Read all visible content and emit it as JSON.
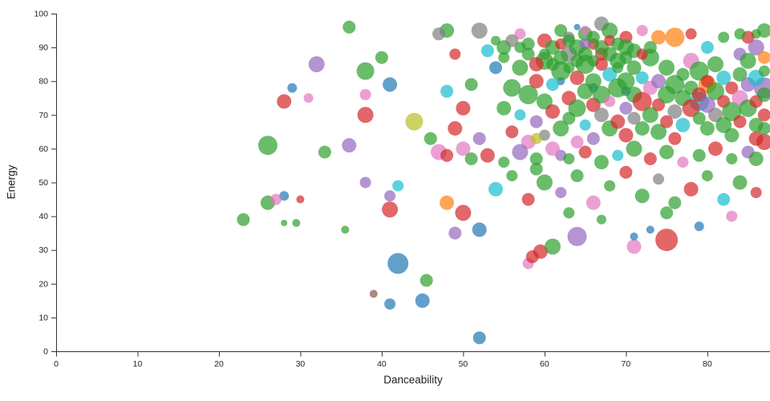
{
  "chart_data": {
    "type": "scatter",
    "title": "",
    "xlabel": "Danceability",
    "ylabel": "Energy",
    "xlim": [
      0,
      87.7
    ],
    "ylim": [
      0,
      100
    ],
    "x_ticks": [
      0,
      10,
      20,
      30,
      40,
      50,
      60,
      70,
      80
    ],
    "y_ticks": [
      0,
      10,
      20,
      30,
      40,
      50,
      60,
      70,
      80,
      90,
      100
    ],
    "legend": "none",
    "grid": false,
    "point_opacity": 0.7,
    "palette": [
      "#1f77b4",
      "#ff7f0e",
      "#2ca02c",
      "#d62728",
      "#9467bd",
      "#8c564b",
      "#e377c2",
      "#7f7f7f",
      "#bcbd22",
      "#17becf"
    ],
    "points": [
      [
        52,
        4,
        8,
        0
      ],
      [
        45,
        15,
        9,
        0
      ],
      [
        41,
        14,
        7,
        0
      ],
      [
        42,
        26,
        13,
        0
      ],
      [
        39,
        17,
        5,
        5
      ],
      [
        45.5,
        21,
        8,
        2
      ],
      [
        58,
        26,
        7,
        6
      ],
      [
        58.5,
        28,
        8,
        3
      ],
      [
        59.5,
        29.5,
        9,
        3
      ],
      [
        61,
        31,
        10,
        2
      ],
      [
        64,
        34,
        12,
        4
      ],
      [
        71,
        31,
        9,
        6
      ],
      [
        75,
        33,
        14,
        3
      ],
      [
        71,
        34,
        5,
        0
      ],
      [
        73,
        36,
        5,
        0
      ],
      [
        49,
        35,
        8,
        4
      ],
      [
        52,
        36,
        9,
        0
      ],
      [
        35.5,
        36,
        5,
        2
      ],
      [
        28,
        38,
        4,
        2
      ],
      [
        29.5,
        38,
        5,
        2
      ],
      [
        23,
        39,
        8,
        2
      ],
      [
        26,
        44,
        9,
        2
      ],
      [
        26,
        61,
        12,
        2
      ],
      [
        28,
        46,
        6,
        0
      ],
      [
        27,
        45,
        7,
        6
      ],
      [
        30,
        45,
        5,
        3
      ],
      [
        28,
        74,
        9,
        3
      ],
      [
        31,
        75,
        6,
        6
      ],
      [
        29,
        78,
        6,
        0
      ],
      [
        32,
        85,
        10,
        4
      ],
      [
        36,
        96,
        8,
        2
      ],
      [
        38,
        83,
        11,
        2
      ],
      [
        41,
        79,
        9,
        0
      ],
      [
        40,
        87,
        8,
        2
      ],
      [
        44,
        68,
        11,
        8
      ],
      [
        38,
        70,
        10,
        3
      ],
      [
        38,
        76,
        7,
        6
      ],
      [
        36,
        61,
        9,
        4
      ],
      [
        33,
        59,
        8,
        2
      ],
      [
        42,
        49,
        7,
        9
      ],
      [
        38,
        50,
        7,
        4
      ],
      [
        41,
        46,
        7,
        4
      ],
      [
        41,
        42,
        10,
        3
      ],
      [
        48,
        44,
        9,
        1
      ],
      [
        50,
        41,
        10,
        3
      ],
      [
        47,
        59,
        10,
        6
      ],
      [
        48,
        58,
        8,
        3
      ],
      [
        50,
        60,
        9,
        6
      ],
      [
        46,
        63,
        8,
        2
      ],
      [
        49,
        66,
        9,
        3
      ],
      [
        52,
        63,
        8,
        4
      ],
      [
        50,
        72,
        9,
        3
      ],
      [
        48,
        77,
        8,
        9
      ],
      [
        51,
        79,
        8,
        2
      ],
      [
        49,
        88,
        7,
        3
      ],
      [
        48,
        95,
        9,
        2
      ],
      [
        47,
        94,
        8,
        7
      ],
      [
        52,
        95,
        10,
        7
      ],
      [
        53,
        89,
        8,
        9
      ],
      [
        55,
        90,
        9,
        2
      ],
      [
        57,
        94,
        7,
        6
      ],
      [
        58,
        91,
        8,
        2
      ],
      [
        60,
        92,
        9,
        3
      ],
      [
        62,
        95,
        8,
        2
      ],
      [
        63,
        93,
        7,
        7
      ],
      [
        65,
        94,
        9,
        2
      ],
      [
        67,
        97,
        9,
        7
      ],
      [
        68,
        95,
        10,
        2
      ],
      [
        70,
        93,
        8,
        3
      ],
      [
        72,
        95,
        7,
        6
      ],
      [
        74,
        93,
        9,
        1
      ],
      [
        76,
        93,
        12,
        1
      ],
      [
        78,
        94,
        7,
        3
      ],
      [
        80,
        90,
        8,
        9
      ],
      [
        82,
        93,
        7,
        2
      ],
      [
        84,
        88,
        8,
        4
      ],
      [
        86,
        94,
        6,
        2
      ],
      [
        87,
        95,
        9,
        2
      ],
      [
        85,
        93,
        8,
        3
      ],
      [
        86,
        90,
        10,
        4
      ],
      [
        84,
        94,
        7,
        2
      ],
      [
        64,
        96,
        4,
        0
      ],
      [
        65,
        95,
        6,
        6
      ],
      [
        66,
        91,
        7,
        3
      ],
      [
        54,
        84,
        8,
        0
      ],
      [
        66,
        78,
        6,
        0
      ],
      [
        62,
        80,
        5,
        0
      ],
      [
        70,
        77,
        6,
        0
      ],
      [
        79,
        74,
        12,
        9
      ],
      [
        87,
        78,
        13,
        4
      ],
      [
        80,
        79,
        11,
        1
      ],
      [
        87,
        62,
        10,
        3
      ],
      [
        86,
        63,
        9,
        3
      ],
      [
        87,
        66,
        8,
        2
      ],
      [
        87,
        87,
        8,
        1
      ],
      [
        55,
        72,
        9,
        2
      ],
      [
        56,
        78,
        11,
        2
      ],
      [
        56,
        65,
        8,
        3
      ],
      [
        57,
        70,
        7,
        9
      ],
      [
        57,
        84,
        10,
        2
      ],
      [
        58,
        62,
        9,
        6
      ],
      [
        58,
        76,
        12,
        2
      ],
      [
        59,
        68,
        8,
        4
      ],
      [
        59,
        80,
        9,
        3
      ],
      [
        60,
        74,
        10,
        2
      ],
      [
        60,
        64,
        7,
        7
      ],
      [
        60,
        86,
        11,
        2
      ],
      [
        61,
        71,
        9,
        3
      ],
      [
        61,
        79,
        8,
        9
      ],
      [
        62,
        66,
        10,
        2
      ],
      [
        62,
        83,
        12,
        2
      ],
      [
        62,
        58,
        7,
        4
      ],
      [
        63,
        75,
        9,
        3
      ],
      [
        63,
        69,
        8,
        2
      ],
      [
        63,
        88,
        10,
        7
      ],
      [
        64,
        72,
        11,
        2
      ],
      [
        64,
        62,
        8,
        6
      ],
      [
        64,
        81,
        9,
        3
      ],
      [
        65,
        77,
        10,
        2
      ],
      [
        65,
        67,
        7,
        9
      ],
      [
        65,
        85,
        12,
        2
      ],
      [
        66,
        73,
        9,
        3
      ],
      [
        66,
        63,
        8,
        4
      ],
      [
        66,
        80,
        10,
        2
      ],
      [
        67,
        70,
        9,
        7
      ],
      [
        67,
        76,
        11,
        2
      ],
      [
        67,
        88,
        8,
        3
      ],
      [
        68,
        66,
        10,
        2
      ],
      [
        68,
        82,
        9,
        9
      ],
      [
        68,
        74,
        7,
        6
      ],
      [
        69,
        78,
        12,
        2
      ],
      [
        69,
        68,
        9,
        3
      ],
      [
        69,
        86,
        10,
        2
      ],
      [
        70,
        72,
        8,
        4
      ],
      [
        70,
        80,
        11,
        2
      ],
      [
        70,
        64,
        9,
        3
      ],
      [
        71,
        76,
        10,
        2
      ],
      [
        71,
        69,
        8,
        7
      ],
      [
        71,
        84,
        9,
        2
      ],
      [
        72,
        74,
        12,
        3
      ],
      [
        72,
        66,
        9,
        2
      ],
      [
        72,
        81,
        8,
        9
      ],
      [
        73,
        70,
        10,
        2
      ],
      [
        73,
        78,
        9,
        6
      ],
      [
        73,
        87,
        11,
        2
      ],
      [
        74,
        73,
        8,
        3
      ],
      [
        74,
        65,
        10,
        2
      ],
      [
        74,
        80,
        9,
        4
      ],
      [
        75,
        76,
        11,
        2
      ],
      [
        75,
        68,
        8,
        3
      ],
      [
        75,
        84,
        10,
        2
      ],
      [
        76,
        71,
        9,
        7
      ],
      [
        76,
        79,
        12,
        2
      ],
      [
        76,
        63,
        8,
        3
      ],
      [
        77,
        75,
        10,
        2
      ],
      [
        77,
        67,
        9,
        9
      ],
      [
        77,
        82,
        8,
        2
      ],
      [
        78,
        72,
        11,
        3
      ],
      [
        78,
        78,
        9,
        2
      ],
      [
        78,
        86,
        10,
        6
      ],
      [
        79,
        69,
        8,
        2
      ],
      [
        79,
        76,
        9,
        3
      ],
      [
        79,
        83,
        12,
        2
      ],
      [
        80,
        73,
        10,
        4
      ],
      [
        80,
        66,
        9,
        2
      ],
      [
        80,
        80,
        8,
        3
      ],
      [
        81,
        77,
        11,
        2
      ],
      [
        81,
        70,
        9,
        7
      ],
      [
        81,
        85,
        10,
        2
      ],
      [
        82,
        74,
        8,
        3
      ],
      [
        82,
        67,
        10,
        2
      ],
      [
        82,
        81,
        9,
        9
      ],
      [
        83,
        71,
        12,
        2
      ],
      [
        83,
        78,
        8,
        3
      ],
      [
        83,
        64,
        9,
        2
      ],
      [
        84,
        75,
        10,
        6
      ],
      [
        84,
        82,
        9,
        2
      ],
      [
        84,
        68,
        8,
        3
      ],
      [
        85,
        72,
        11,
        2
      ],
      [
        85,
        79,
        9,
        4
      ],
      [
        85,
        86,
        10,
        2
      ],
      [
        86,
        74,
        8,
        3
      ],
      [
        86,
        67,
        9,
        2
      ],
      [
        86,
        81,
        10,
        9
      ],
      [
        87,
        76,
        9,
        2
      ],
      [
        87,
        70,
        8,
        3
      ],
      [
        87,
        83,
        7,
        2
      ],
      [
        61,
        90,
        9,
        2
      ],
      [
        62,
        91,
        7,
        3
      ],
      [
        63,
        92,
        8,
        2
      ],
      [
        64,
        90,
        10,
        2
      ],
      [
        65,
        91,
        7,
        4
      ],
      [
        66,
        93,
        8,
        2
      ],
      [
        67,
        90,
        9,
        2
      ],
      [
        68,
        92,
        7,
        3
      ],
      [
        69,
        91,
        8,
        2
      ],
      [
        70,
        90,
        10,
        2
      ],
      [
        64,
        86,
        8,
        2
      ],
      [
        65,
        88,
        9,
        2
      ],
      [
        66,
        86,
        7,
        2
      ],
      [
        67,
        85,
        8,
        3
      ],
      [
        68,
        88,
        9,
        2
      ],
      [
        69,
        84,
        7,
        2
      ],
      [
        70,
        87,
        8,
        2
      ],
      [
        71,
        89,
        9,
        2
      ],
      [
        72,
        88,
        7,
        3
      ],
      [
        73,
        90,
        8,
        2
      ],
      [
        63,
        84,
        7,
        2
      ],
      [
        62,
        87,
        9,
        2
      ],
      [
        61,
        85,
        8,
        2
      ],
      [
        60,
        88,
        7,
        2
      ],
      [
        59,
        85,
        9,
        3
      ],
      [
        58,
        88,
        8,
        2
      ],
      [
        57,
        90,
        7,
        2
      ],
      [
        56,
        92,
        8,
        7
      ],
      [
        55,
        87,
        7,
        2
      ],
      [
        54,
        92,
        6,
        2
      ],
      [
        51,
        57,
        8,
        2
      ],
      [
        53,
        58,
        9,
        3
      ],
      [
        55,
        56,
        7,
        2
      ],
      [
        57,
        59,
        10,
        4
      ],
      [
        59,
        57,
        8,
        2
      ],
      [
        61,
        60,
        9,
        6
      ],
      [
        63,
        57,
        7,
        2
      ],
      [
        65,
        59,
        8,
        3
      ],
      [
        67,
        56,
        9,
        2
      ],
      [
        69,
        58,
        7,
        9
      ],
      [
        71,
        60,
        10,
        2
      ],
      [
        73,
        57,
        8,
        3
      ],
      [
        75,
        59,
        9,
        2
      ],
      [
        77,
        56,
        7,
        6
      ],
      [
        79,
        58,
        8,
        2
      ],
      [
        81,
        60,
        9,
        3
      ],
      [
        83,
        57,
        7,
        2
      ],
      [
        85,
        59,
        8,
        4
      ],
      [
        86,
        57,
        9,
        2
      ],
      [
        59,
        63,
        7,
        8
      ],
      [
        54,
        48,
        9,
        9
      ],
      [
        56,
        52,
        7,
        2
      ],
      [
        58,
        45,
        8,
        3
      ],
      [
        60,
        50,
        10,
        2
      ],
      [
        62,
        47,
        7,
        4
      ],
      [
        64,
        52,
        8,
        2
      ],
      [
        66,
        44,
        9,
        6
      ],
      [
        68,
        49,
        7,
        2
      ],
      [
        70,
        53,
        8,
        3
      ],
      [
        72,
        46,
        9,
        2
      ],
      [
        74,
        51,
        7,
        7
      ],
      [
        76,
        44,
        8,
        2
      ],
      [
        78,
        48,
        9,
        3
      ],
      [
        80,
        52,
        7,
        2
      ],
      [
        82,
        45,
        8,
        9
      ],
      [
        84,
        50,
        9,
        2
      ],
      [
        86,
        47,
        7,
        3
      ],
      [
        59,
        54,
        8,
        2
      ],
      [
        63,
        41,
        7,
        2
      ],
      [
        67,
        39,
        6,
        2
      ],
      [
        75,
        41,
        8,
        2
      ],
      [
        79,
        37,
        6,
        0
      ],
      [
        83,
        40,
        7,
        6
      ]
    ]
  }
}
